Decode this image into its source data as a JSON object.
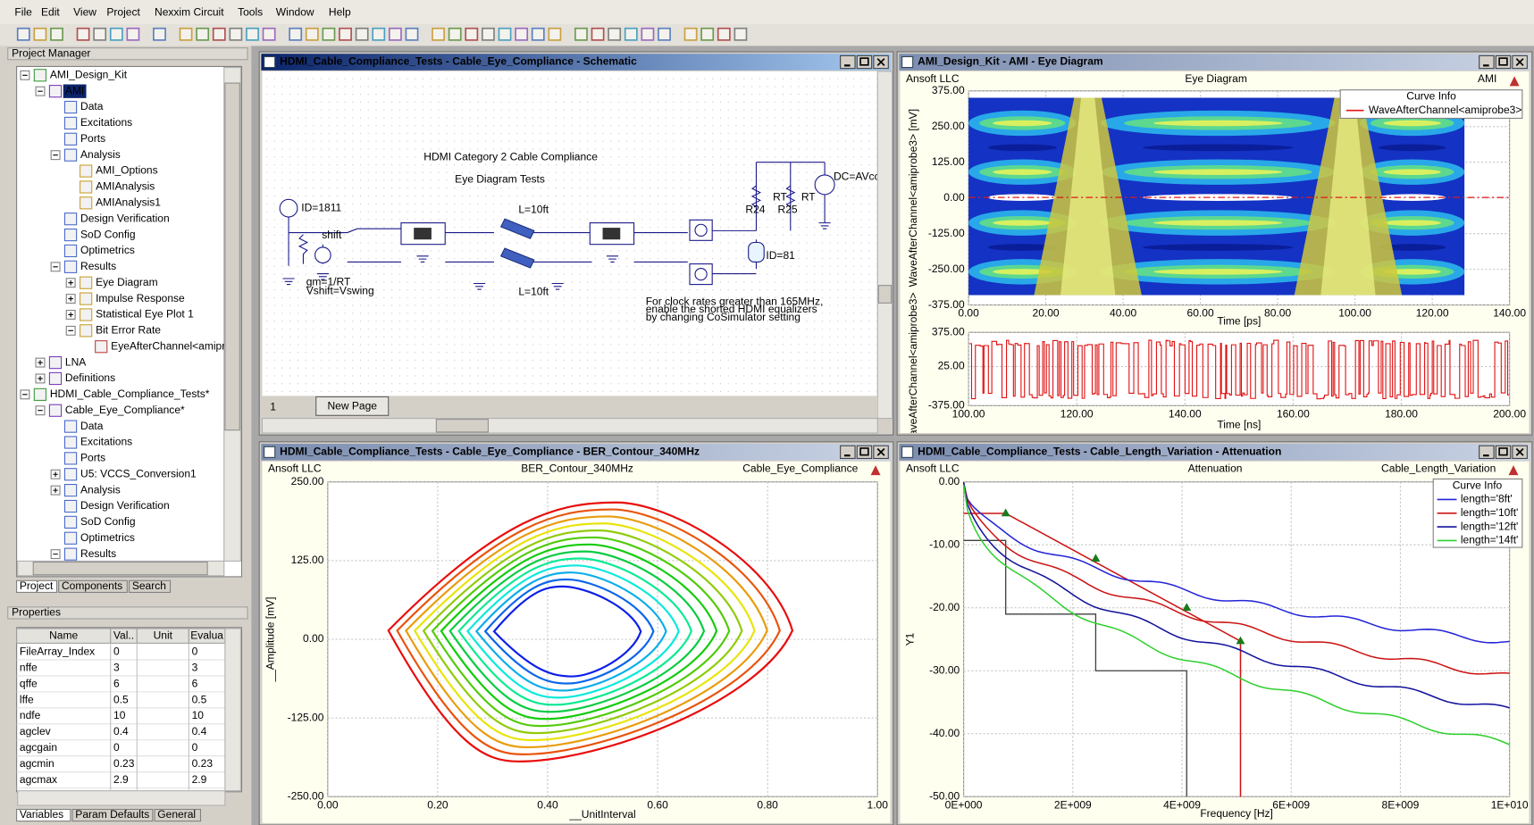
{
  "menu": [
    "File",
    "Edit",
    "View",
    "Project",
    "Nexxim Circuit",
    "Tools",
    "Window",
    "Help"
  ],
  "project_manager": {
    "title": "Project Manager",
    "tree": [
      {
        "label": "AMI_Design_Kit",
        "expanded": true,
        "children": [
          {
            "label": "AMI",
            "selected": true,
            "expanded": true,
            "children": [
              {
                "label": "Data"
              },
              {
                "label": "Excitations"
              },
              {
                "label": "Ports"
              },
              {
                "label": "Analysis",
                "expanded": true,
                "children": [
                  {
                    "label": "AMI_Options"
                  },
                  {
                    "label": "AMIAnalysis"
                  },
                  {
                    "label": "AMIAnalysis1"
                  }
                ]
              },
              {
                "label": "Design Verification"
              },
              {
                "label": "SoD Config"
              },
              {
                "label": "Optimetrics"
              },
              {
                "label": "Results",
                "expanded": true,
                "children": [
                  {
                    "label": "Eye Diagram",
                    "expanded": false
                  },
                  {
                    "label": "Impulse Response",
                    "expanded": false
                  },
                  {
                    "label": "Statistical Eye Plot 1",
                    "expanded": false
                  },
                  {
                    "label": "Bit Error Rate",
                    "expanded": true,
                    "children": [
                      {
                        "label": "EyeAfterChannel<amipr"
                      }
                    ]
                  }
                ]
              }
            ]
          },
          {
            "label": "LNA",
            "expanded": false
          },
          {
            "label": "Definitions",
            "expanded": false
          }
        ]
      },
      {
        "label": "HDMI_Cable_Compliance_Tests*",
        "expanded": true,
        "children": [
          {
            "label": "Cable_Eye_Compliance*",
            "expanded": true,
            "children": [
              {
                "label": "Data"
              },
              {
                "label": "Excitations"
              },
              {
                "label": "Ports"
              },
              {
                "label": "U5: VCCS_Conversion1",
                "expanded": false
              },
              {
                "label": "Analysis",
                "expanded": false
              },
              {
                "label": "Design Verification"
              },
              {
                "label": "SoD Config"
              },
              {
                "label": "Optimetrics"
              },
              {
                "label": "Results",
                "expanded": true
              }
            ]
          }
        ]
      }
    ],
    "tabs": [
      "Project",
      "Components",
      "Search"
    ]
  },
  "properties": {
    "title": "Properties",
    "columns": [
      "Name",
      "Val..",
      "Unit",
      "Evalua"
    ],
    "rows": [
      {
        "name": "FileArray_Index",
        "value": 0,
        "evaluated": 0
      },
      {
        "name": "nffe",
        "value": 3,
        "evaluated": 3
      },
      {
        "name": "qffe",
        "value": 6,
        "evaluated": 6
      },
      {
        "name": "lffe",
        "value": 0.5,
        "evaluated": 0.5
      },
      {
        "name": "ndfe",
        "value": 10,
        "evaluated": 10
      },
      {
        "name": "agclev",
        "value": 0.4,
        "evaluated": 0.4
      },
      {
        "name": "agcgain",
        "value": 0,
        "evaluated": 0
      },
      {
        "name": "agcmin",
        "value": 0.23,
        "evaluated": 0.23
      },
      {
        "name": "agcmax",
        "value": 2.9,
        "evaluated": 2.9
      }
    ],
    "tabs": [
      "Variables",
      "Param Defaults",
      "General"
    ]
  },
  "schematic": {
    "title": "HDMI_Cable_Compliance_Tests - Cable_Eye_Compliance - Schematic",
    "heading": "HDMI Category 2 Cable Compliance",
    "subheading": "Eye Diagram Tests",
    "labels": [
      "ID=1811",
      "shift",
      "gm=1/RT",
      "Vshift=Vswing",
      "L=10ft",
      "L=10ft",
      "R24",
      "RT",
      "R25",
      "RT",
      "DC=AVcc",
      "ID=81"
    ],
    "note": [
      "For clock rates greater than 165MHz,",
      "enable the shorted HDMI equalizers",
      "by changing CoSimulator setting"
    ],
    "page_number": 1,
    "page_tab": "New Page"
  },
  "eye_diagram": {
    "title": "AMI_Design_Kit - AMI - Eye Diagram",
    "company": "Ansoft LLC",
    "plot_title": "Eye Diagram",
    "design": "AMI",
    "legend_title": "Curve Info",
    "legend": [
      "WaveAfterChannel<amiprobe3>"
    ],
    "y_label": "WaveAfterChannel<amiprobe3> [mV]",
    "x_label": "Time [ps]",
    "yticks": [
      "375.00",
      "250.00",
      "125.00",
      "0.00",
      "-125.00",
      "-250.00",
      "-375.00"
    ],
    "xticks": [
      "0.00",
      "20.00",
      "40.00",
      "60.00",
      "80.00",
      "100.00",
      "120.00",
      "140.00"
    ],
    "waveform": {
      "y_label": "WaveAfterChannel<amiprobe3>",
      "x_label": "Time [ns]",
      "yticks": [
        "375.00",
        "25.00",
        "-375.00"
      ],
      "xticks": [
        "100.00",
        "120.00",
        "140.00",
        "160.00",
        "180.00",
        "200.00"
      ]
    }
  },
  "ber_contour": {
    "title": "HDMI_Cable_Compliance_Tests - Cable_Eye_Compliance - BER_Contour_340MHz",
    "company": "Ansoft LLC",
    "plot_title": "BER_Contour_340MHz",
    "design": "Cable_Eye_Compliance",
    "y_label": "__Amplitude [mV]",
    "x_label": "__UnitInterval",
    "yticks": [
      "250.00",
      "125.00",
      "0.00",
      "-125.00",
      "-250.00"
    ],
    "xticks": [
      "0.00",
      "0.20",
      "0.40",
      "0.60",
      "0.80",
      "1.00"
    ]
  },
  "attenuation": {
    "title": "HDMI_Cable_Compliance_Tests - Cable_Length_Variation - Attenuation",
    "company": "Ansoft LLC",
    "plot_title": "Attenuation",
    "design": "Cable_Length_Variation",
    "legend_title": "Curve Info",
    "legend": [
      {
        "name": "length='8ft'",
        "color": "#2424d8"
      },
      {
        "name": "length='10ft'",
        "color": "#cc1414"
      },
      {
        "name": "length='12ft'",
        "color": "#12129c"
      },
      {
        "name": "length='14ft'",
        "color": "#2ed02e"
      }
    ],
    "y_label": "Y1",
    "x_label": "Frequency [Hz]",
    "yticks": [
      "0.00",
      "-10.00",
      "-20.00",
      "-30.00",
      "-40.00",
      "-50.00"
    ],
    "xticks": [
      "0E+000",
      "2E+009",
      "4E+009",
      "6E+009",
      "8E+009",
      "1E+010"
    ]
  }
}
